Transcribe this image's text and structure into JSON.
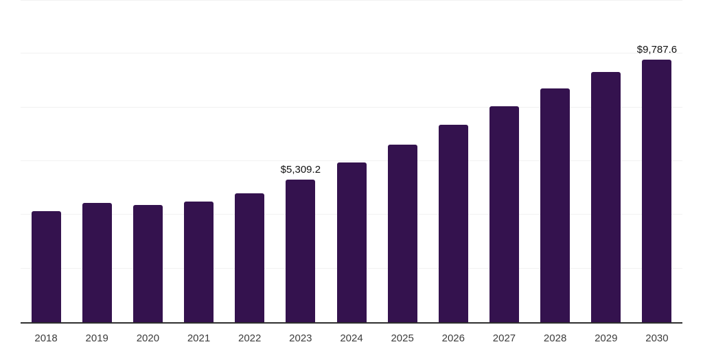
{
  "chart_data": {
    "type": "bar",
    "title": "",
    "xlabel": "",
    "ylabel": "",
    "categories": [
      "2018",
      "2019",
      "2020",
      "2021",
      "2022",
      "2023",
      "2024",
      "2025",
      "2026",
      "2027",
      "2028",
      "2029",
      "2030"
    ],
    "values": [
      4130,
      4440,
      4360,
      4490,
      4800,
      5309.2,
      5950,
      6620,
      7360,
      8050,
      8695,
      9310,
      9787.6
    ],
    "data_labels": [
      "",
      "",
      "",
      "",
      "",
      "$5,309.2",
      "",
      "",
      "",
      "",
      "",
      "",
      "$9,787.6"
    ],
    "ylim": [
      0,
      12000
    ],
    "gridline_values": [
      2000,
      4000,
      6000,
      8000,
      10000,
      12000
    ],
    "grid": "horizontal",
    "legend_position": "none",
    "colors": {
      "bar": "#34124e",
      "axis_line": "#2e2e2e",
      "gridline": "#f1f1f1",
      "tick_label": "#3c3c3c",
      "data_label": "#111111",
      "background": "#ffffff"
    }
  }
}
